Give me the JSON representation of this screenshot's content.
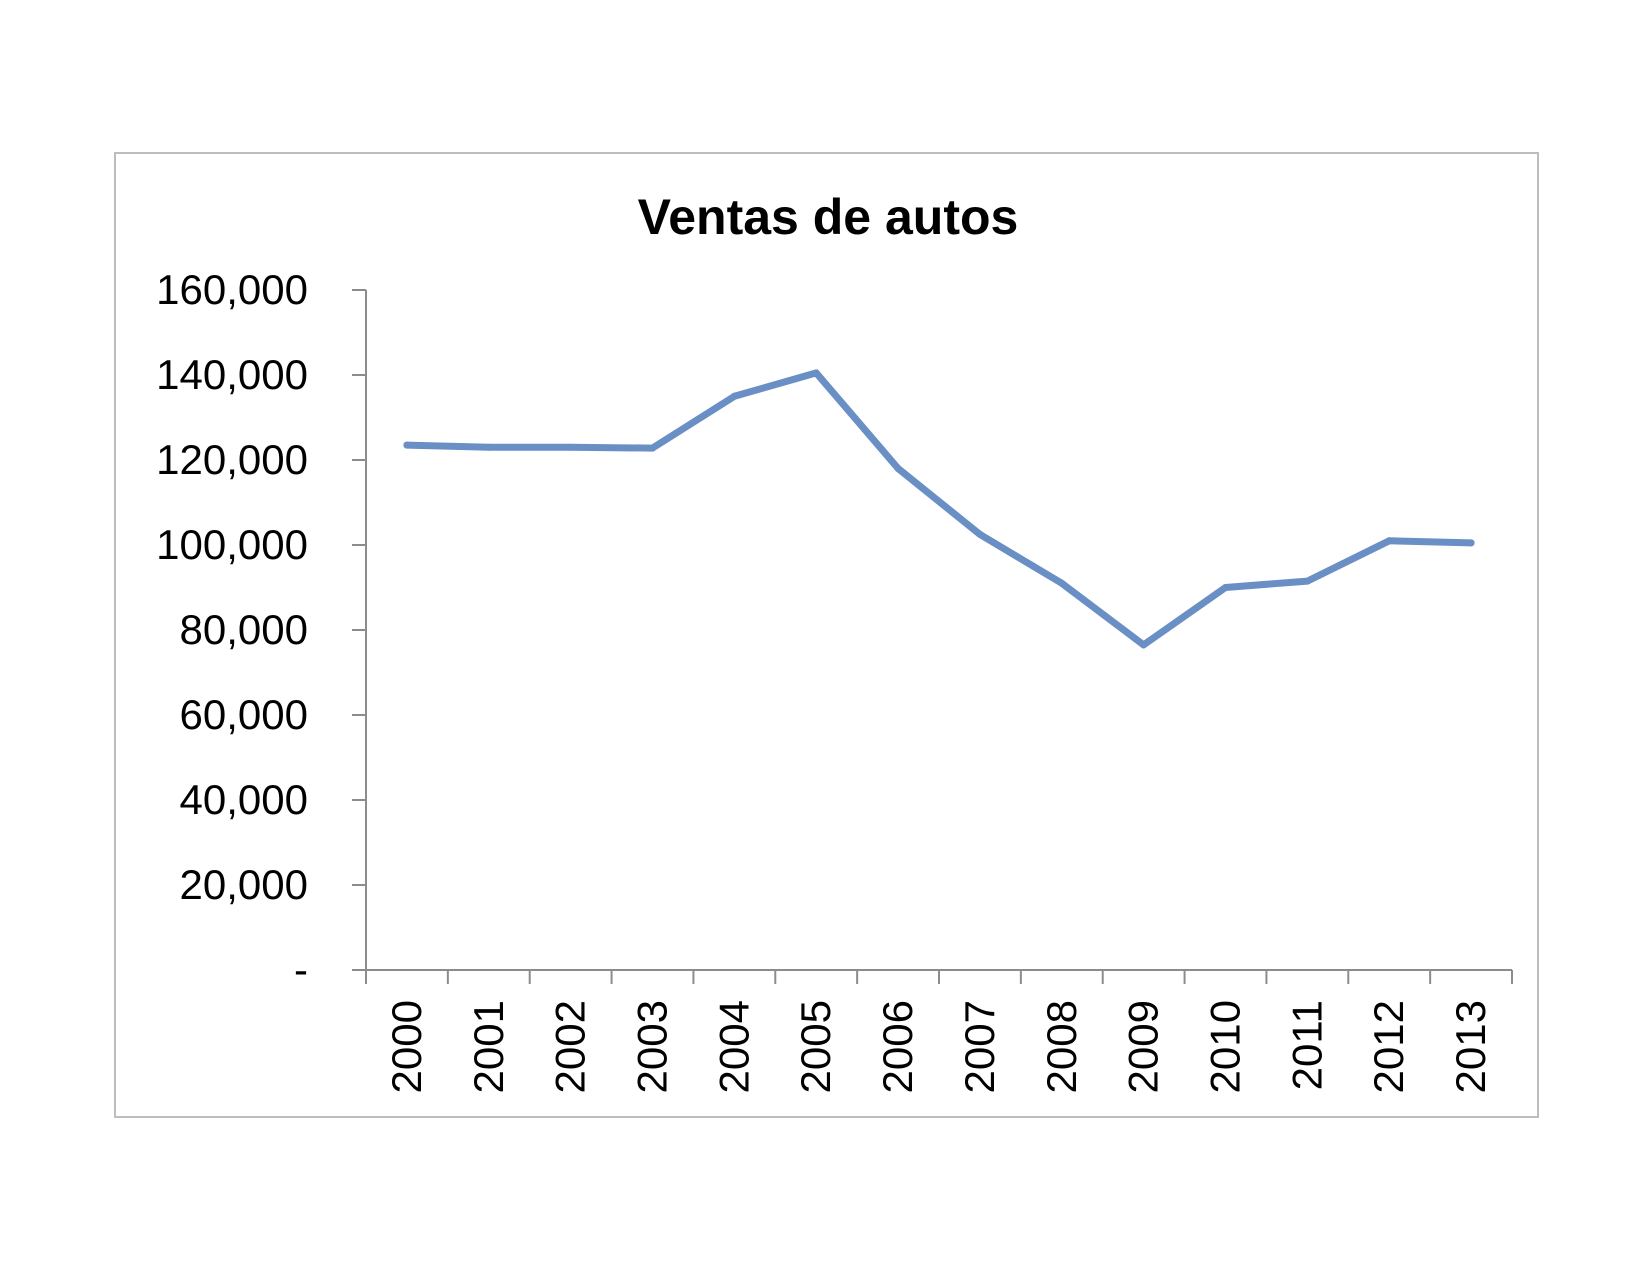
{
  "chart_data": {
    "type": "line",
    "title": "Ventas de autos",
    "xlabel": "",
    "ylabel": "",
    "categories": [
      "2000",
      "2001",
      "2002",
      "2003",
      "2004",
      "2005",
      "2006",
      "2007",
      "2008",
      "2009",
      "2010",
      "2011",
      "2012",
      "2013"
    ],
    "series": [
      {
        "values": [
          123500,
          123000,
          123000,
          122800,
          135000,
          140500,
          118000,
          102500,
          91000,
          76500,
          90000,
          91500,
          101000,
          100500
        ],
        "color": "#6a8fc5"
      }
    ],
    "ylim": [
      0,
      160000
    ],
    "yticks": [
      0,
      20000,
      40000,
      60000,
      80000,
      100000,
      120000,
      140000,
      160000
    ],
    "ytick_labels": [
      "-",
      "20,000",
      "40,000",
      "60,000",
      "80,000",
      "100,000",
      "120,000",
      "140,000",
      "160,000"
    ],
    "grid": false,
    "legend": "none",
    "axis_color": "#8c8c8c"
  }
}
